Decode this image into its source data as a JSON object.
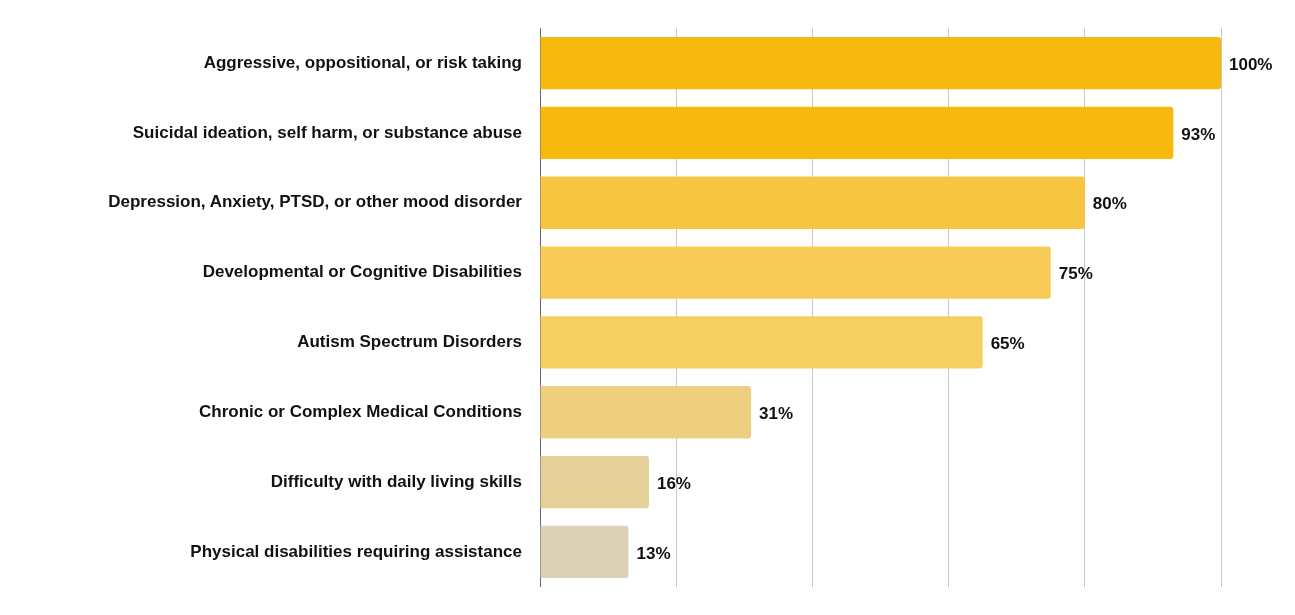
{
  "chart_data": {
    "type": "bar",
    "orientation": "horizontal",
    "categories": [
      "Aggressive, oppositional, or risk taking",
      "Suicidal ideation, self harm, or substance abuse",
      "Depression, Anxiety, PTSD, or other mood disorder",
      "Developmental or Cognitive Disabilities",
      "Autism Spectrum Disorders",
      "Chronic or Complex Medical Conditions",
      "Difficulty with daily living skills",
      "Physical disabilities requiring assistance"
    ],
    "values": [
      100,
      93,
      80,
      75,
      65,
      31,
      16,
      13
    ],
    "value_labels": [
      "100%",
      "93%",
      "80%",
      "75%",
      "65%",
      "31%",
      "16%",
      "13%"
    ],
    "colors": [
      "#f7b90e",
      "#f7b90e",
      "#f7c540",
      "#f7cb55",
      "#f6cf63",
      "#eecf80",
      "#e6d09a",
      "#dbd1b5"
    ],
    "xlim": [
      0,
      100
    ],
    "xticks": [
      {
        "value": 0,
        "label": null
      },
      {
        "value": 20,
        "label": null
      },
      {
        "value": 40,
        "label": null
      },
      {
        "value": 60,
        "label": null
      },
      {
        "value": 80,
        "label": null
      },
      {
        "value": 100,
        "label": null
      }
    ],
    "grid": "x",
    "tick_labels": "y",
    "legend": false
  }
}
